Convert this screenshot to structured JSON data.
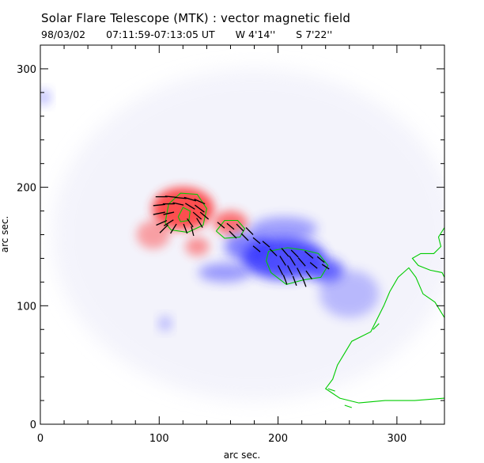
{
  "header": {
    "title": "Solar Flare Telescope (MTK) : vector magnetic field",
    "date": "98/03/02",
    "time_range": "07:11:59-07:13:05 UT",
    "lon": "W 4'14''",
    "lat": "S 7'22''"
  },
  "chart_data": {
    "type": "heatmap",
    "title": "Solar Flare Telescope (MTK) : vector magnetic field",
    "subtitle": "98/03/02  07:11:59-07:13:05 UT    W 4'14''   S 7'22''",
    "xlabel": "arc sec.",
    "ylabel": "arc sec.",
    "xlim": [
      0,
      340
    ],
    "ylim": [
      0,
      320
    ],
    "x_ticks": [
      0,
      100,
      200,
      300
    ],
    "y_ticks": [
      0,
      100,
      200,
      300
    ],
    "colors": {
      "positive": "#ff3030",
      "negative": "#3030ff",
      "contour": "#00cc00",
      "vector": "#000000"
    },
    "positive_polarity": [
      {
        "x": 120,
        "y": 182,
        "rx": 26,
        "ry": 18,
        "strength": 1.0
      },
      {
        "x": 160,
        "y": 170,
        "rx": 14,
        "ry": 10,
        "strength": 0.7
      },
      {
        "x": 95,
        "y": 160,
        "rx": 14,
        "ry": 12,
        "strength": 0.3
      },
      {
        "x": 132,
        "y": 150,
        "rx": 10,
        "ry": 8,
        "strength": 0.4
      }
    ],
    "negative_polarity": [
      {
        "x": 205,
        "y": 140,
        "rx": 35,
        "ry": 18,
        "strength": 1.0
      },
      {
        "x": 175,
        "y": 150,
        "rx": 20,
        "ry": 12,
        "strength": 0.6
      },
      {
        "x": 240,
        "y": 130,
        "rx": 15,
        "ry": 10,
        "strength": 0.8
      },
      {
        "x": 205,
        "y": 165,
        "rx": 28,
        "ry": 10,
        "strength": 0.35
      },
      {
        "x": 155,
        "y": 128,
        "rx": 22,
        "ry": 8,
        "strength": 0.4
      },
      {
        "x": 105,
        "y": 85,
        "rx": 5,
        "ry": 6,
        "strength": 0.25
      },
      {
        "x": 3,
        "y": 276,
        "rx": 5,
        "ry": 6,
        "strength": 0.3
      },
      {
        "x": 260,
        "y": 110,
        "rx": 25,
        "ry": 20,
        "strength": 0.15
      }
    ],
    "contours": [
      [
        [
          105,
          170
        ],
        [
          108,
          186
        ],
        [
          118,
          195
        ],
        [
          132,
          194
        ],
        [
          140,
          182
        ],
        [
          137,
          168
        ],
        [
          124,
          162
        ],
        [
          110,
          164
        ],
        [
          105,
          170
        ]
      ],
      [
        [
          116,
          175
        ],
        [
          120,
          183
        ],
        [
          126,
          180
        ],
        [
          125,
          172
        ],
        [
          118,
          171
        ],
        [
          116,
          175
        ]
      ],
      [
        [
          148,
          163
        ],
        [
          155,
          172
        ],
        [
          166,
          172
        ],
        [
          172,
          165
        ],
        [
          168,
          158
        ],
        [
          155,
          157
        ],
        [
          148,
          163
        ]
      ],
      [
        [
          192,
          146
        ],
        [
          208,
          149
        ],
        [
          222,
          147
        ],
        [
          234,
          144
        ],
        [
          242,
          134
        ],
        [
          236,
          124
        ],
        [
          222,
          122
        ],
        [
          207,
          118
        ],
        [
          194,
          128
        ],
        [
          190,
          138
        ],
        [
          192,
          146
        ]
      ],
      [
        [
          340,
          166
        ],
        [
          335,
          158
        ],
        [
          337,
          150
        ],
        [
          331,
          144
        ],
        [
          320,
          144
        ],
        [
          313,
          140
        ],
        [
          318,
          134
        ],
        [
          328,
          130
        ],
        [
          338,
          128
        ],
        [
          340,
          124
        ]
      ],
      [
        [
          340,
          90
        ],
        [
          332,
          103
        ],
        [
          322,
          110
        ],
        [
          316,
          124
        ],
        [
          310,
          132
        ],
        [
          301,
          124
        ],
        [
          294,
          112
        ],
        [
          289,
          100
        ],
        [
          283,
          88
        ],
        [
          278,
          78
        ],
        [
          262,
          70
        ],
        [
          256,
          60
        ],
        [
          250,
          50
        ],
        [
          246,
          38
        ],
        [
          240,
          30
        ],
        [
          252,
          22
        ],
        [
          268,
          18
        ],
        [
          290,
          20
        ],
        [
          315,
          20
        ],
        [
          340,
          22
        ]
      ],
      [
        [
          280,
          80
        ],
        [
          285,
          85
        ]
      ],
      [
        [
          242,
          30
        ],
        [
          248,
          28
        ]
      ],
      [
        [
          256,
          16
        ],
        [
          262,
          14
        ]
      ]
    ],
    "vectors": [
      [
        102,
        192,
        10,
        0
      ],
      [
        110,
        192,
        10,
        -1
      ],
      [
        118,
        191,
        10,
        -1
      ],
      [
        126,
        190,
        10,
        -3
      ],
      [
        134,
        188,
        9,
        -4
      ],
      [
        100,
        185,
        10,
        1
      ],
      [
        108,
        186,
        10,
        0
      ],
      [
        116,
        186,
        9,
        -2
      ],
      [
        126,
        184,
        8,
        -5
      ],
      [
        134,
        182,
        8,
        -6
      ],
      [
        100,
        178,
        10,
        2
      ],
      [
        108,
        178,
        9,
        2
      ],
      [
        132,
        176,
        7,
        -6
      ],
      [
        138,
        176,
        7,
        -6
      ],
      [
        102,
        170,
        9,
        4
      ],
      [
        108,
        170,
        8,
        5
      ],
      [
        126,
        170,
        5,
        -7
      ],
      [
        134,
        170,
        5,
        -8
      ],
      [
        104,
        165,
        7,
        7
      ],
      [
        112,
        165,
        5,
        8
      ],
      [
        122,
        165,
        3,
        -8
      ],
      [
        128,
        163,
        2,
        -8
      ],
      [
        152,
        168,
        6,
        -5
      ],
      [
        160,
        167,
        6,
        -5
      ],
      [
        168,
        166,
        6,
        -6
      ],
      [
        176,
        163,
        6,
        -6
      ],
      [
        162,
        160,
        6,
        -6
      ],
      [
        172,
        158,
        6,
        -6
      ],
      [
        182,
        155,
        6,
        -5
      ],
      [
        190,
        152,
        6,
        -5
      ],
      [
        182,
        148,
        6,
        -5
      ],
      [
        196,
        145,
        6,
        -6
      ],
      [
        206,
        145,
        6,
        -7
      ],
      [
        214,
        144,
        6,
        -6
      ],
      [
        226,
        143,
        7,
        -6
      ],
      [
        236,
        139,
        6,
        -5
      ],
      [
        204,
        138,
        5,
        -8
      ],
      [
        212,
        138,
        5,
        -8
      ],
      [
        220,
        137,
        6,
        -7
      ],
      [
        230,
        134,
        6,
        -5
      ],
      [
        240,
        133,
        6,
        -4
      ],
      [
        202,
        130,
        4,
        -8
      ],
      [
        210,
        130,
        4,
        -8
      ],
      [
        218,
        128,
        4,
        -8
      ],
      [
        226,
        126,
        5,
        -7
      ],
      [
        206,
        122,
        3,
        -8
      ],
      [
        214,
        121,
        3,
        -8
      ],
      [
        222,
        120,
        3,
        -8
      ]
    ]
  }
}
